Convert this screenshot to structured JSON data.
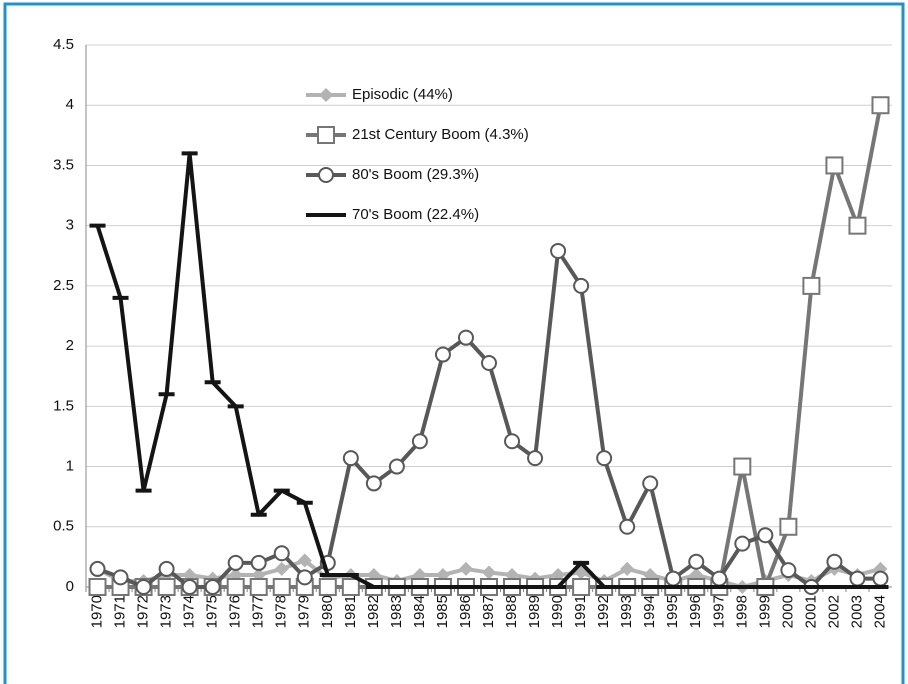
{
  "chart_data": {
    "type": "line",
    "categories": [
      "1970",
      "1971",
      "1972",
      "1973",
      "1974",
      "1975",
      "1976",
      "1977",
      "1978",
      "1979",
      "1980",
      "1981",
      "1982",
      "1983",
      "1984",
      "1985",
      "1986",
      "1987",
      "1988",
      "1989",
      "1990",
      "1991",
      "1992",
      "1993",
      "1994",
      "1995",
      "1996",
      "1997",
      "1998",
      "1999",
      "2000",
      "2001",
      "2002",
      "2003",
      "2004"
    ],
    "series": [
      {
        "name": "Episodic (44%)",
        "color": "#b3b3b3",
        "marker": "diamond",
        "width": 4,
        "values": [
          0.15,
          0.05,
          0.05,
          0.1,
          0.1,
          0.07,
          0.1,
          0.1,
          0.15,
          0.22,
          0.07,
          0.1,
          0.1,
          0.05,
          0.1,
          0.1,
          0.15,
          0.12,
          0.1,
          0.07,
          0.1,
          0.12,
          0.05,
          0.15,
          0.1,
          0.05,
          0.1,
          0.05,
          0,
          0.05,
          0.1,
          0.05,
          0.15,
          0.1,
          0.15
        ]
      },
      {
        "name": "21st Century Boom (4.3%)",
        "color": "#767676",
        "marker": "square",
        "width": 4,
        "values": [
          0,
          0,
          0,
          0,
          0,
          0,
          0,
          0,
          0,
          0,
          0,
          0,
          0,
          0,
          0,
          0,
          0,
          0,
          0,
          0,
          0,
          0,
          0,
          0,
          0,
          0,
          0,
          0,
          1,
          0,
          0.5,
          2.5,
          3.5,
          3,
          4
        ]
      },
      {
        "name": "80's Boom (29.3%)",
        "color": "#585858",
        "marker": "circle",
        "width": 4,
        "values": [
          0.15,
          0.08,
          0,
          0.15,
          0,
          0,
          0.2,
          0.2,
          0.28,
          0.08,
          0.2,
          1.07,
          0.86,
          1,
          1.21,
          1.93,
          2.07,
          1.86,
          1.21,
          1.07,
          2.79,
          2.5,
          1.07,
          0.5,
          0.86,
          0.07,
          0.21,
          0.07,
          0.36,
          0.43,
          0.14,
          0,
          0.21,
          0.07,
          0.07
        ]
      },
      {
        "name": "70's Boom (22.4%)",
        "color": "#141414",
        "marker": "dash",
        "width": 4,
        "values": [
          3,
          2.4,
          0.8,
          1.6,
          3.6,
          1.7,
          1.5,
          0.6,
          0.8,
          0.7,
          0.1,
          0.1,
          0,
          0,
          0,
          0,
          0,
          0,
          0,
          0,
          0,
          0.2,
          0,
          0,
          0,
          0,
          0,
          0,
          0,
          0,
          0,
          0,
          0,
          0,
          0
        ]
      }
    ],
    "ylim": [
      0,
      4.5
    ],
    "yticks": [
      0,
      0.5,
      1,
      1.5,
      2,
      2.5,
      3,
      3.5,
      4,
      4.5
    ],
    "grid": true
  }
}
